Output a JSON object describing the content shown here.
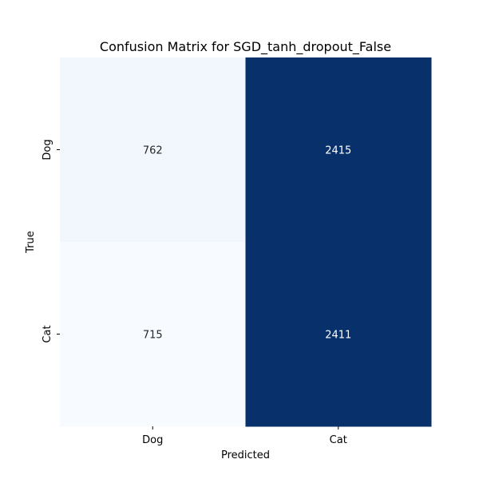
{
  "chart_data": {
    "type": "heatmap",
    "title": "Confusion Matrix for SGD_tanh_dropout_False",
    "xlabel": "Predicted",
    "ylabel": "True",
    "x_categories": [
      "Dog",
      "Cat"
    ],
    "y_categories": [
      "Dog",
      "Cat"
    ],
    "values": [
      [
        762,
        2415
      ],
      [
        715,
        2411
      ]
    ],
    "colormap": "Blues",
    "colorbar": false,
    "grid": false,
    "annotations": true,
    "colors": {
      "low": "#f7fbff",
      "high": "#08306b",
      "text_on_light": "#262626",
      "text_on_dark": "#ffffff"
    }
  }
}
